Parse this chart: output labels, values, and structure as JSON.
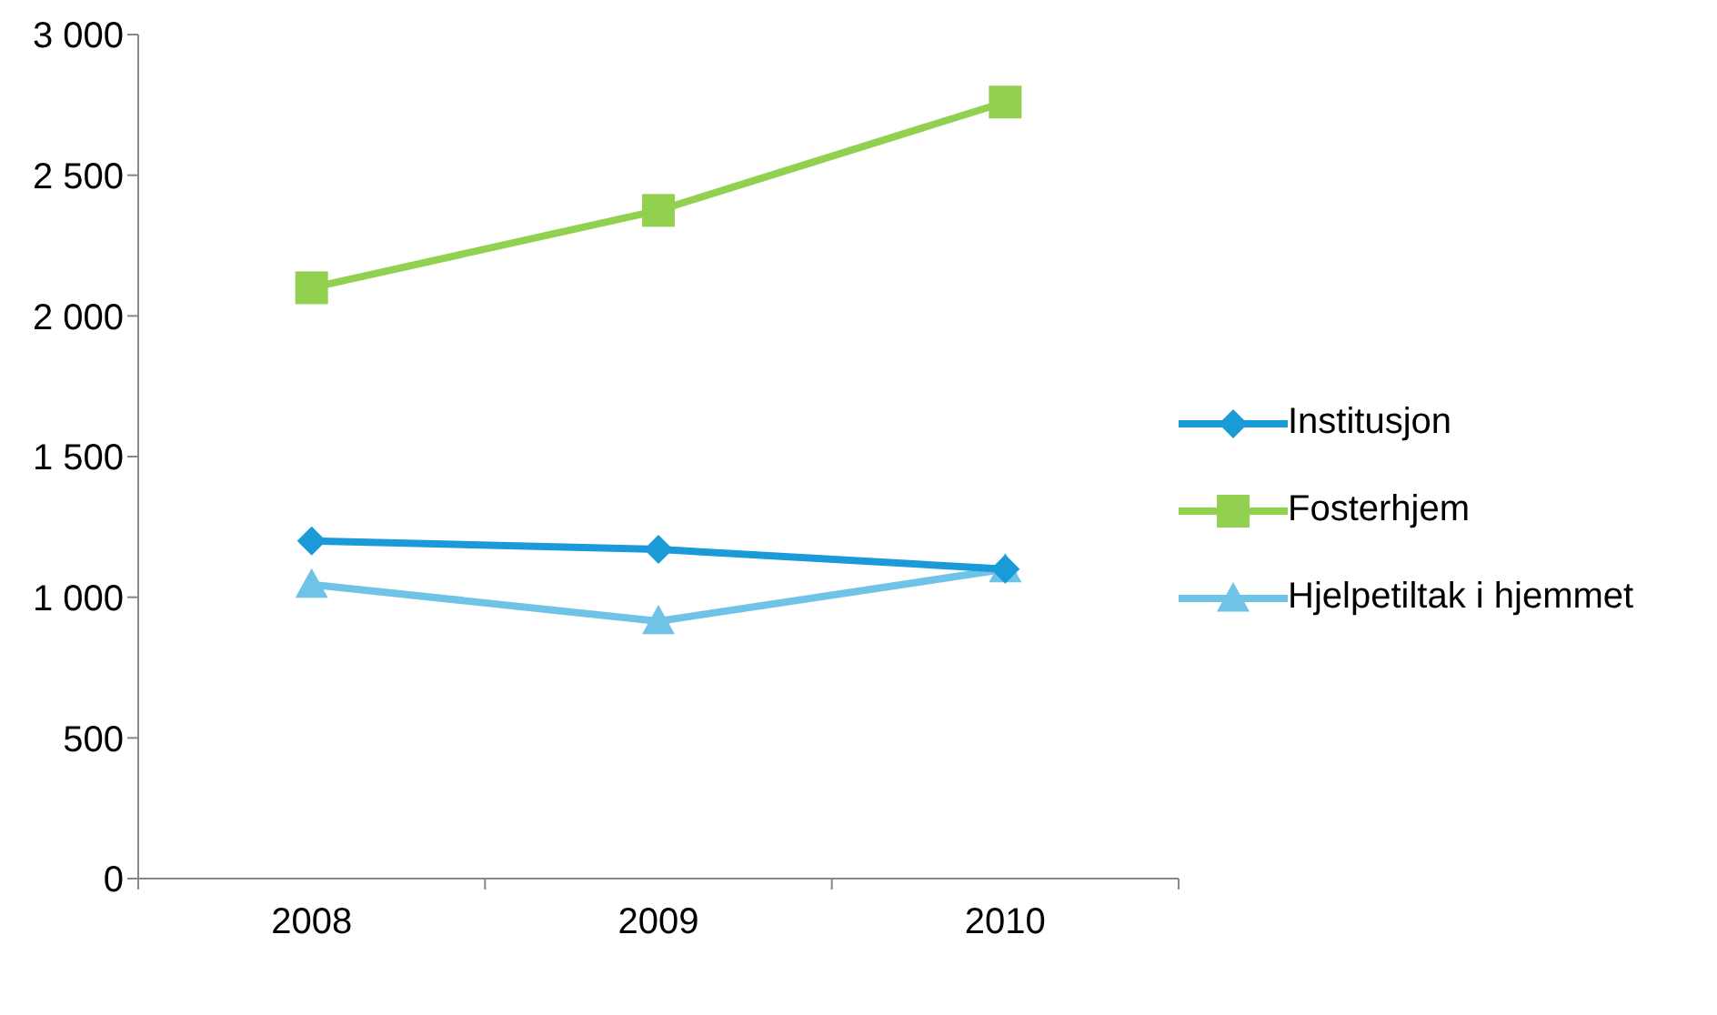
{
  "chart_data": {
    "type": "line",
    "categories": [
      "2008",
      "2009",
      "2010"
    ],
    "series": [
      {
        "name": "Institusjon",
        "color": "#1a9bd7",
        "marker": "diamond",
        "values": [
          1200,
          1170,
          1100
        ]
      },
      {
        "name": "Fosterhjem",
        "color": "#92d050",
        "marker": "square",
        "values": [
          2100,
          2375,
          2760
        ]
      },
      {
        "name": "Hjelpetiltak i hjemmet",
        "color": "#6ec3e6",
        "marker": "triangle",
        "values": [
          1045,
          915,
          1100
        ]
      }
    ],
    "ylim": [
      0,
      3000
    ],
    "yticks": [
      {
        "value": 0,
        "label": "0"
      },
      {
        "value": 500,
        "label": "500"
      },
      {
        "value": 1000,
        "label": "1 000"
      },
      {
        "value": 1500,
        "label": "1 500"
      },
      {
        "value": 2000,
        "label": "2 000"
      },
      {
        "value": 2500,
        "label": "2 500"
      },
      {
        "value": 3000,
        "label": "3 000"
      }
    ],
    "grid": false,
    "legend": "right",
    "line_style": "solid"
  }
}
